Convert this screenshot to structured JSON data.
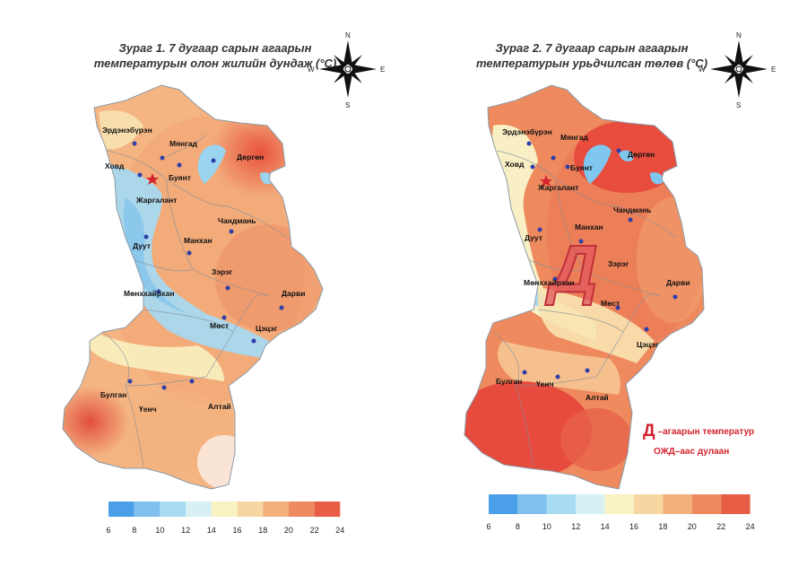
{
  "maps": [
    {
      "title_line1": "Зураг 1. 7 дугаар сарын агаарын",
      "title_line2": "температурын олон жилийн дундаж (°C)",
      "towns": [
        "Эрдэнэбүрэн",
        "Мянгад",
        "Ховд",
        "Буянт",
        "Дөргөн",
        "Жаргалант",
        "Чандмань",
        "Дуут",
        "Манхан",
        "Зэрэг",
        "Мөнххайрхан",
        "Дарви",
        "Мөст",
        "Цэцэг",
        "Булган",
        "Үенч",
        "Алтай"
      ],
      "legend_ticks": [
        "6",
        "8",
        "10",
        "12",
        "14",
        "16",
        "18",
        "20",
        "22",
        "24"
      ]
    },
    {
      "title_line1": "Зураг 2. 7 дугаар сарын агаарын",
      "title_line2": "температурын урьдчилсан төлөв (°C)",
      "towns": [
        "Эрдэнэбүрэн",
        "Мянгад",
        "Ховд",
        "Буянт",
        "Дөргөн",
        "Жаргалант",
        "Чандмань",
        "Дуут",
        "Манхан",
        "Зэрэг",
        "Мөнххайрхан",
        "Дарви",
        "Мөст",
        "Цэцэг",
        "Булган",
        "Үенч",
        "Алтай"
      ],
      "legend_ticks": [
        "6",
        "8",
        "10",
        "12",
        "14",
        "16",
        "18",
        "20",
        "22",
        "24"
      ],
      "overlay_letter": "Д"
    }
  ],
  "compass": {
    "n": "N",
    "s": "S",
    "e": "E",
    "w": "W"
  },
  "annotation": {
    "letter": "Д",
    "line1": "–агаарын температур",
    "line2": "ОЖД–аас дулаан"
  },
  "legend_colors": [
    "#4a9fe8",
    "#7fc0ee",
    "#a8dcf2",
    "#d6f0f4",
    "#f9f3c4",
    "#f7d7a1",
    "#f4b07a",
    "#ee8a5e",
    "#e85d46"
  ],
  "colors": {
    "star": "#d3232f",
    "dot": "#2f3ea8",
    "lake": "#8fd0ee",
    "annotation": "#d3232f"
  }
}
